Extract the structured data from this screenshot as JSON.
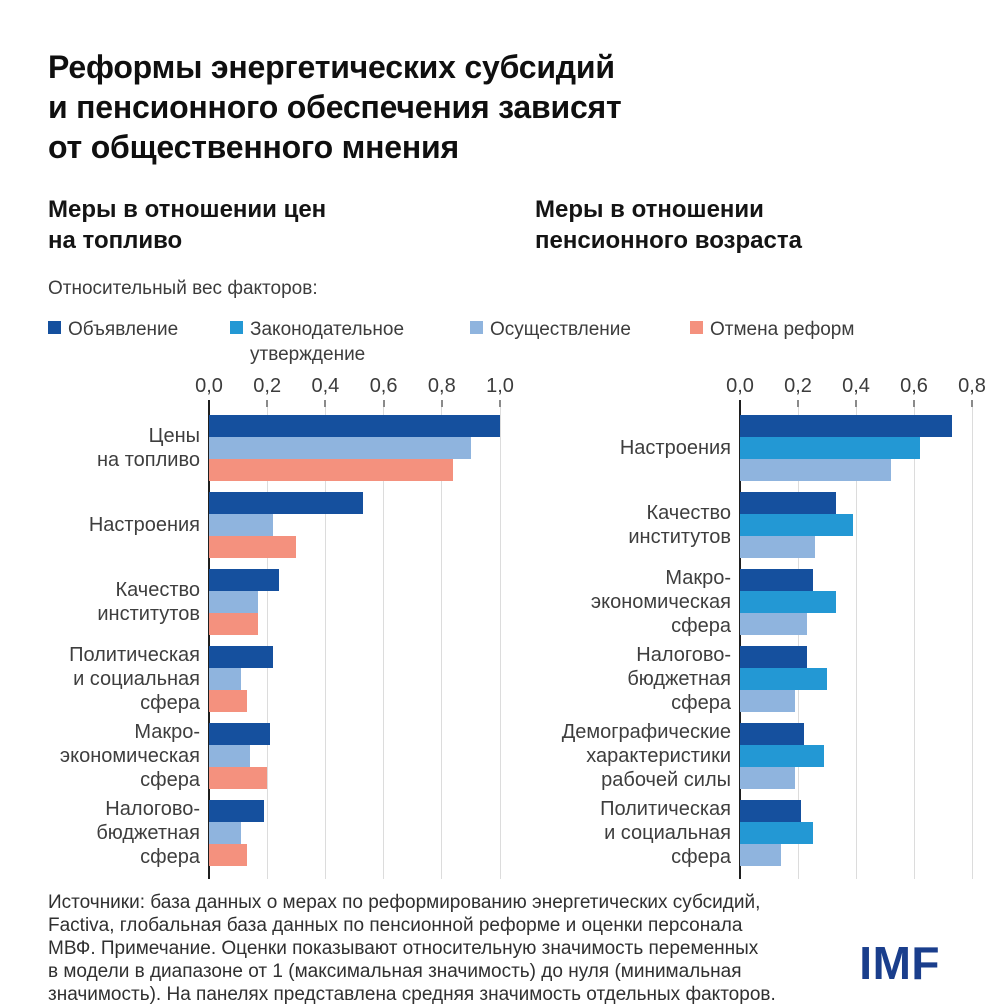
{
  "header": {
    "title": "Реформы энергетических субсидий\nи пенсионного обеспечения зависят\nот общественного мнения"
  },
  "colors": {
    "announcement": "#15509E",
    "legislation": "#2398D4",
    "implementation": "#8FB4DE",
    "reversal": "#F4917E",
    "logo_blue": "#1A3E8C",
    "gridline": "#DCDCDC",
    "axis": "#1F1F1F"
  },
  "legend": {
    "intro": "Относительный вес факторов:",
    "items": [
      {
        "label": "Объявление",
        "color": "announcement"
      },
      {
        "label": "Законодательное\nутверждение",
        "color": "legislation"
      },
      {
        "label": "Осуществление",
        "color": "implementation"
      },
      {
        "label": "Отмена реформ",
        "color": "reversal"
      }
    ]
  },
  "chart_data": [
    {
      "type": "bar",
      "orientation": "horizontal",
      "title": "Меры в отношении цен\nна топливо",
      "categories": [
        "Цены\nна топливо",
        "Настроения",
        "Качество\nинститутов",
        "Политическая\nи социальная\nсфера",
        "Макро-\nэкономическая\nсфера",
        "Налогово-\nбюджетная\nсфера"
      ],
      "series": [
        {
          "name": "Объявление",
          "color_key": "announcement",
          "values": [
            1.0,
            0.53,
            0.24,
            0.22,
            0.21,
            0.19
          ]
        },
        {
          "name": "Осуществление",
          "color_key": "implementation",
          "values": [
            0.9,
            0.22,
            0.17,
            0.11,
            0.14,
            0.11
          ]
        },
        {
          "name": "Отмена реформ",
          "color_key": "reversal",
          "values": [
            0.84,
            0.3,
            0.17,
            0.13,
            0.2,
            0.13
          ]
        }
      ],
      "xlim": [
        0,
        1.0
      ],
      "ticks": [
        "0,0",
        "0,2",
        "0,4",
        "0,6",
        "0,8",
        "1,0"
      ],
      "grid": true,
      "legend_position": "top"
    },
    {
      "type": "bar",
      "orientation": "horizontal",
      "title": "Меры в отношении\nпенсионного возраста",
      "categories": [
        "Настроения",
        "Качество институтов",
        "Макро-\nэкономическая\nсфера",
        "Налогово-бюджетная\nсфера",
        "Демографические\nхарактеристики\nрабочей силы",
        "Политическая\nи социальная сфера"
      ],
      "series": [
        {
          "name": "Объявление",
          "color_key": "announcement",
          "values": [
            0.73,
            0.33,
            0.25,
            0.23,
            0.22,
            0.21
          ]
        },
        {
          "name": "Законодательное утверждение",
          "color_key": "legislation",
          "values": [
            0.62,
            0.39,
            0.33,
            0.3,
            0.29,
            0.25
          ]
        },
        {
          "name": "Осуществление",
          "color_key": "implementation",
          "values": [
            0.52,
            0.26,
            0.23,
            0.19,
            0.19,
            0.14
          ]
        }
      ],
      "xlim": [
        0,
        0.8
      ],
      "ticks": [
        "0,0",
        "0,2",
        "0,4",
        "0,6",
        "0,8"
      ],
      "grid": true,
      "legend_position": "top"
    }
  ],
  "footer": {
    "note": "Источники: база данных о мерах по реформированию энергетических субсидий,\nFactiva, глобальная база данных по пенсионной реформе и оценки персонала\nМВФ. Примечание. Оценки показывают относительную значимость переменных\nв модели в диапазоне от 1 (максимальная значимость) до нуля (минимальная\nзначимость). На панелях представлена средняя значимость отдельных факторов.",
    "logo": "IMF"
  }
}
